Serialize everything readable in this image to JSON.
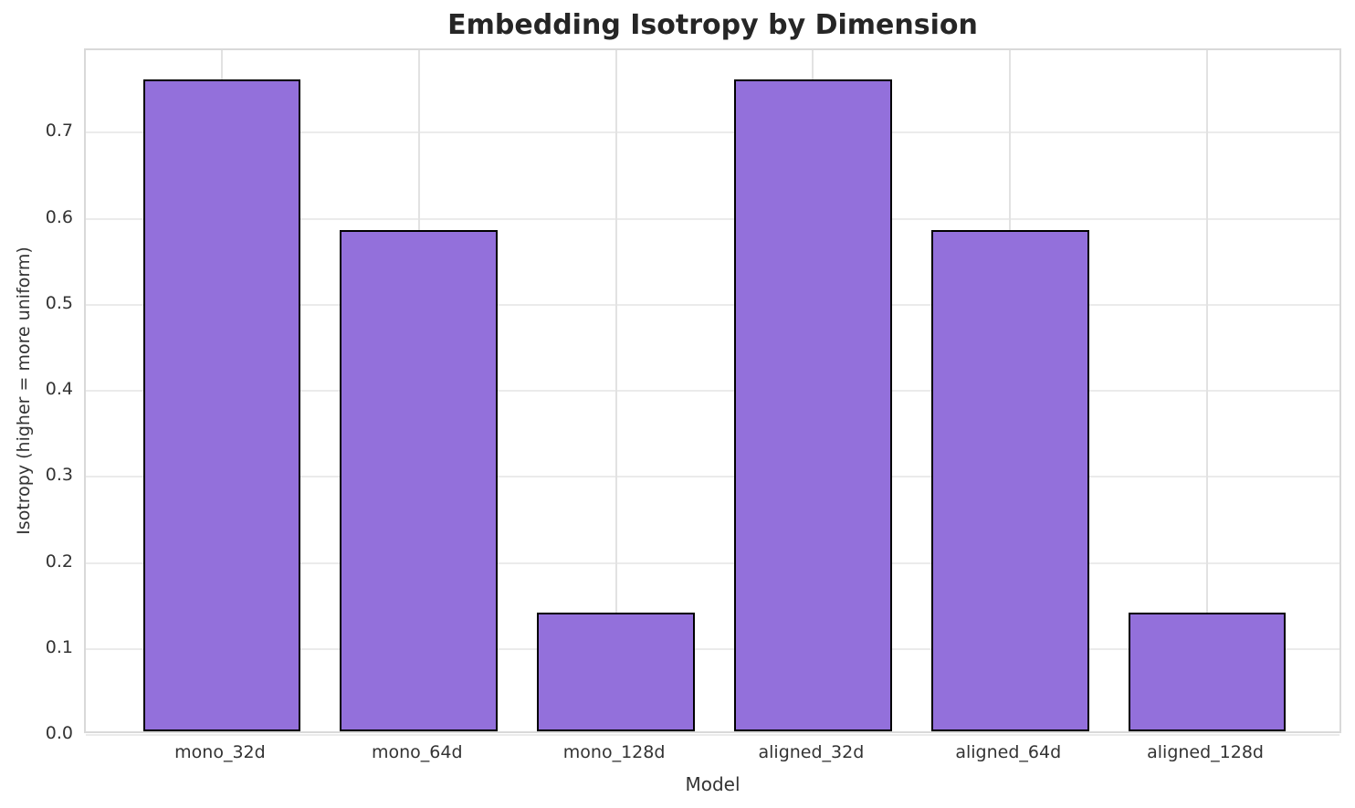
{
  "chart_data": {
    "type": "bar",
    "title": "Embedding Isotropy by Dimension",
    "xlabel": "Model",
    "ylabel": "Isotropy (higher = more uniform)",
    "categories": [
      "mono_32d",
      "mono_64d",
      "mono_128d",
      "aligned_32d",
      "aligned_64d",
      "aligned_128d"
    ],
    "values": [
      0.758,
      0.583,
      0.138,
      0.758,
      0.583,
      0.138
    ],
    "ylim": [
      0,
      0.796
    ],
    "yticks": [
      0.0,
      0.1,
      0.2,
      0.3,
      0.4,
      0.5,
      0.6,
      0.7
    ],
    "ytick_labels": [
      "0.0",
      "0.1",
      "0.2",
      "0.3",
      "0.4",
      "0.5",
      "0.6",
      "0.7"
    ],
    "xlim": [
      -0.69,
      5.69
    ],
    "bar_width_units": 0.8,
    "grid": true,
    "legend_position": "none",
    "colors": {
      "bar_fill": "#9370DB",
      "bar_edge": "#000000",
      "gridline": "#ebebeb",
      "spine": "#d9d9d9",
      "title_text": "#262626",
      "tick_text": "#333333",
      "background": "#ffffff"
    }
  }
}
